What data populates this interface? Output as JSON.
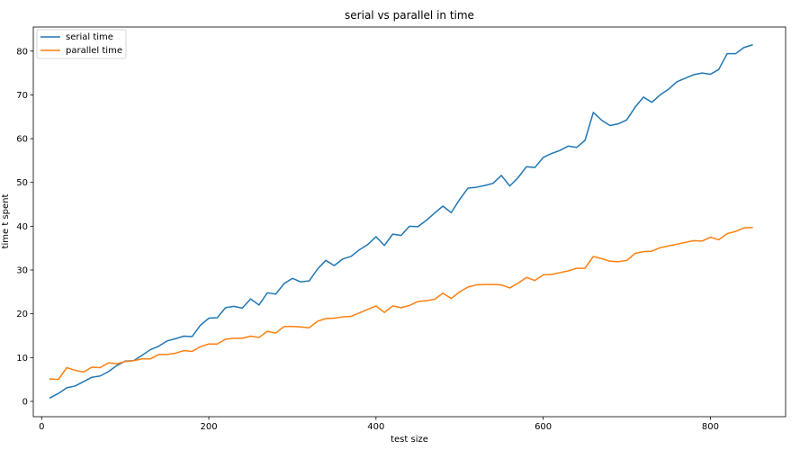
{
  "chart_data": {
    "type": "line",
    "title": "serial vs parallel in time",
    "xlabel": "test size",
    "ylabel": "time t spent",
    "xlim": [
      -10,
      890
    ],
    "ylim": [
      -3.5,
      85.5
    ],
    "xticks": [
      0,
      200,
      400,
      600,
      800
    ],
    "yticks": [
      0,
      10,
      20,
      30,
      40,
      50,
      60,
      70,
      80
    ],
    "grid": false,
    "legend_position": "upper-left",
    "x": [
      10,
      20,
      30,
      40,
      50,
      60,
      70,
      80,
      90,
      100,
      110,
      120,
      130,
      140,
      150,
      160,
      170,
      180,
      190,
      200,
      210,
      220,
      230,
      240,
      250,
      260,
      270,
      280,
      290,
      300,
      310,
      320,
      330,
      340,
      350,
      360,
      370,
      380,
      390,
      400,
      410,
      420,
      430,
      440,
      450,
      460,
      470,
      480,
      490,
      500,
      510,
      520,
      530,
      540,
      550,
      560,
      570,
      580,
      590,
      600,
      610,
      620,
      630,
      640,
      650,
      660,
      670,
      680,
      690,
      700,
      710,
      720,
      730,
      740,
      750,
      760,
      770,
      780,
      790,
      800,
      810,
      820,
      830,
      840,
      850
    ],
    "series": [
      {
        "name": "serial time",
        "color": "#1f77b4",
        "values": [
          0.8,
          1.8,
          3.1,
          3.5,
          4.5,
          5.5,
          5.8,
          6.8,
          8.2,
          9.2,
          9.3,
          10.5,
          11.8,
          12.6,
          13.8,
          14.3,
          14.9,
          14.8,
          17.4,
          19.0,
          19.1,
          21.4,
          21.7,
          21.3,
          23.4,
          22.0,
          24.8,
          24.5,
          26.9,
          28.1,
          27.3,
          27.5,
          30.2,
          32.2,
          31.0,
          32.5,
          33.1,
          34.6,
          35.8,
          37.6,
          35.6,
          38.2,
          37.9,
          40.0,
          39.9,
          41.3,
          43.0,
          44.6,
          43.1,
          46.1,
          48.7,
          48.9,
          49.3,
          49.8,
          51.6,
          49.2,
          51.1,
          53.6,
          53.4,
          55.7,
          56.6,
          57.3,
          58.3,
          58.0,
          59.6,
          66.0,
          64.2,
          63.0,
          63.4,
          64.3,
          67.2,
          69.5,
          68.3,
          70.0,
          71.3,
          73.0,
          73.8,
          74.6,
          75.0,
          74.7,
          75.8,
          79.4,
          79.4,
          80.8,
          81.4
        ]
      },
      {
        "name": "parallel time",
        "color": "#ff7f0e",
        "values": [
          5.1,
          5.0,
          7.7,
          7.1,
          6.7,
          7.8,
          7.7,
          8.8,
          8.6,
          9.1,
          9.3,
          9.7,
          9.7,
          10.7,
          10.7,
          11.0,
          11.6,
          11.4,
          12.5,
          13.1,
          13.1,
          14.2,
          14.4,
          14.4,
          14.9,
          14.6,
          16.0,
          15.6,
          17.1,
          17.1,
          17.0,
          16.8,
          18.3,
          18.9,
          19.0,
          19.3,
          19.4,
          20.2,
          21.0,
          21.8,
          20.3,
          21.8,
          21.4,
          21.9,
          22.8,
          23.0,
          23.3,
          24.7,
          23.5,
          25.0,
          26.1,
          26.6,
          26.7,
          26.7,
          26.6,
          25.9,
          27.0,
          28.3,
          27.6,
          28.9,
          29.0,
          29.4,
          29.8,
          30.4,
          30.4,
          33.1,
          32.6,
          32.0,
          31.9,
          32.2,
          33.8,
          34.2,
          34.3,
          35.1,
          35.5,
          35.9,
          36.3,
          36.7,
          36.6,
          37.5,
          36.9,
          38.3,
          38.8,
          39.6,
          39.7
        ]
      }
    ]
  }
}
